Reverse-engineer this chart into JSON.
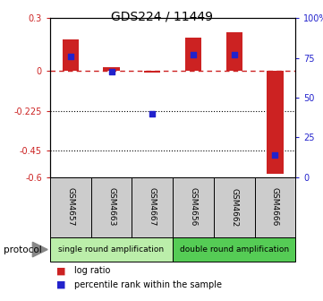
{
  "title": "GDS224 / 11449",
  "samples": [
    "GSM4657",
    "GSM4663",
    "GSM4667",
    "GSM4656",
    "GSM4662",
    "GSM4666"
  ],
  "log_ratio": [
    0.18,
    0.02,
    -0.01,
    0.19,
    0.22,
    -0.58
  ],
  "percentile_rank": [
    76,
    66,
    40,
    77,
    77,
    14
  ],
  "ylim_left": [
    -0.6,
    0.3
  ],
  "ylim_right": [
    0,
    100
  ],
  "yticks_left": [
    0.3,
    0,
    -0.225,
    -0.45,
    -0.6
  ],
  "ytick_labels_left": [
    "0.3",
    "0",
    "-0.225",
    "-0.45",
    "-0.6"
  ],
  "yticks_right": [
    100,
    75,
    50,
    25,
    0
  ],
  "bar_color": "#cc2222",
  "dot_color": "#2222cc",
  "dashed_color": "#cc2222",
  "single_color": "#bbeeaa",
  "double_color": "#55cc55",
  "sample_box_color": "#cccccc",
  "title_fontsize": 10,
  "tick_fontsize": 7,
  "label_fontsize": 6.5,
  "legend_fontsize": 7,
  "protocol_fontsize": 7.5
}
